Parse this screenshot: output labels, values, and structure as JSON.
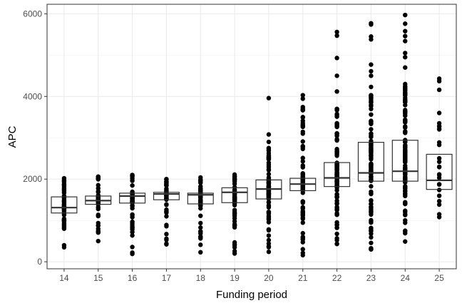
{
  "chart_data": {
    "type": "boxplot",
    "xlabel": "Funding period",
    "ylabel": "APC",
    "ylim": [
      -170,
      6230
    ],
    "y_ticks": [
      0,
      2000,
      4000,
      6000
    ],
    "categories": [
      "14",
      "15",
      "16",
      "17",
      "18",
      "19",
      "20",
      "21",
      "22",
      "23",
      "24",
      "25"
    ],
    "grid": true,
    "boxes": [
      {
        "x": "14",
        "q1": 1180,
        "median": 1310,
        "q3": 1570
      },
      {
        "x": "15",
        "q1": 1390,
        "median": 1480,
        "q3": 1590
      },
      {
        "x": "16",
        "q1": 1420,
        "median": 1590,
        "q3": 1660
      },
      {
        "x": "17",
        "q1": 1500,
        "median": 1640,
        "q3": 1680
      },
      {
        "x": "18",
        "q1": 1400,
        "median": 1620,
        "q3": 1660
      },
      {
        "x": "19",
        "q1": 1430,
        "median": 1680,
        "q3": 1790
      },
      {
        "x": "20",
        "q1": 1520,
        "median": 1760,
        "q3": 1980
      },
      {
        "x": "21",
        "q1": 1720,
        "median": 1880,
        "q3": 2020
      },
      {
        "x": "22",
        "q1": 1820,
        "median": 2030,
        "q3": 2400
      },
      {
        "x": "23",
        "q1": 1950,
        "median": 2150,
        "q3": 2890
      },
      {
        "x": "24",
        "q1": 1950,
        "median": 2190,
        "q3": 2940
      },
      {
        "x": "25",
        "q1": 1750,
        "median": 1970,
        "q3": 2600
      }
    ],
    "points": [
      {
        "x": "14",
        "min": 800,
        "max": 2020,
        "count": 48,
        "extras": [
          350,
          400
        ]
      },
      {
        "x": "15",
        "min": 500,
        "max": 2060,
        "count": 38,
        "extras": []
      },
      {
        "x": "16",
        "min": 190,
        "max": 2100,
        "count": 50,
        "extras": [
          850
        ]
      },
      {
        "x": "17",
        "min": 420,
        "max": 2000,
        "count": 46,
        "extras": []
      },
      {
        "x": "18",
        "min": 230,
        "max": 2040,
        "count": 52,
        "extras": []
      },
      {
        "x": "19",
        "min": 200,
        "max": 2110,
        "count": 55,
        "extras": []
      },
      {
        "x": "20",
        "min": 240,
        "max": 2750,
        "count": 95,
        "extras": [
          2900,
          3080,
          3960
        ]
      },
      {
        "x": "21",
        "min": 160,
        "max": 4030,
        "count": 110,
        "extras": [
          3300,
          3700
        ]
      },
      {
        "x": "22",
        "min": 430,
        "max": 3700,
        "count": 120,
        "extras": [
          4120,
          4500,
          4930,
          5470,
          5560
        ]
      },
      {
        "x": "23",
        "min": 300,
        "max": 4030,
        "count": 120,
        "extras": [
          4230,
          4500,
          4610,
          4770,
          5380,
          5450,
          5740,
          5770
        ]
      },
      {
        "x": "24",
        "min": 490,
        "max": 4300,
        "count": 125,
        "extras": [
          4700,
          4950,
          5050,
          5340,
          5460,
          5580,
          5760,
          5970
        ]
      },
      {
        "x": "25",
        "min": 1080,
        "max": 3350,
        "count": 20,
        "extras": [
          3600,
          4160,
          4370,
          4430
        ]
      }
    ]
  }
}
